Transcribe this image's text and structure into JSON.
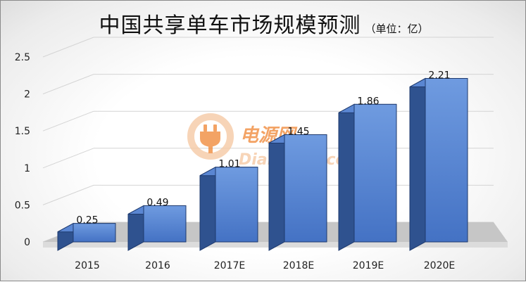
{
  "chart_data": {
    "type": "bar",
    "title": "中国共享单车市场规模预测",
    "unit_label": "（单位：亿）",
    "categories": [
      "2015",
      "2016",
      "2017E",
      "2018E",
      "2019E",
      "2020E"
    ],
    "values": [
      0.25,
      0.49,
      1.01,
      1.45,
      1.86,
      2.21
    ],
    "value_labels": [
      "0.25",
      "0.49",
      "1.01",
      "1.45",
      "1.86",
      "2.21"
    ],
    "y_ticks": [
      "0",
      "0.5",
      "1",
      "1.5",
      "2",
      "2.5"
    ],
    "ylim": [
      0,
      2.5
    ],
    "grid": true,
    "legend": "none",
    "colors": {
      "bar_front_top": "#6f9be0",
      "bar_front_bottom": "#4472c4",
      "bar_side": "#2f528f",
      "bar_top": "#5a86d2",
      "bar_edge": "#1e3a6e",
      "floor": "#c6c6c6",
      "grid": "#d4d4d4"
    }
  },
  "watermark": {
    "brand": "电源网",
    "site": "DianYuan.com",
    "colors": {
      "orange": "#f08a3a",
      "light": "#f6c9a3"
    }
  }
}
